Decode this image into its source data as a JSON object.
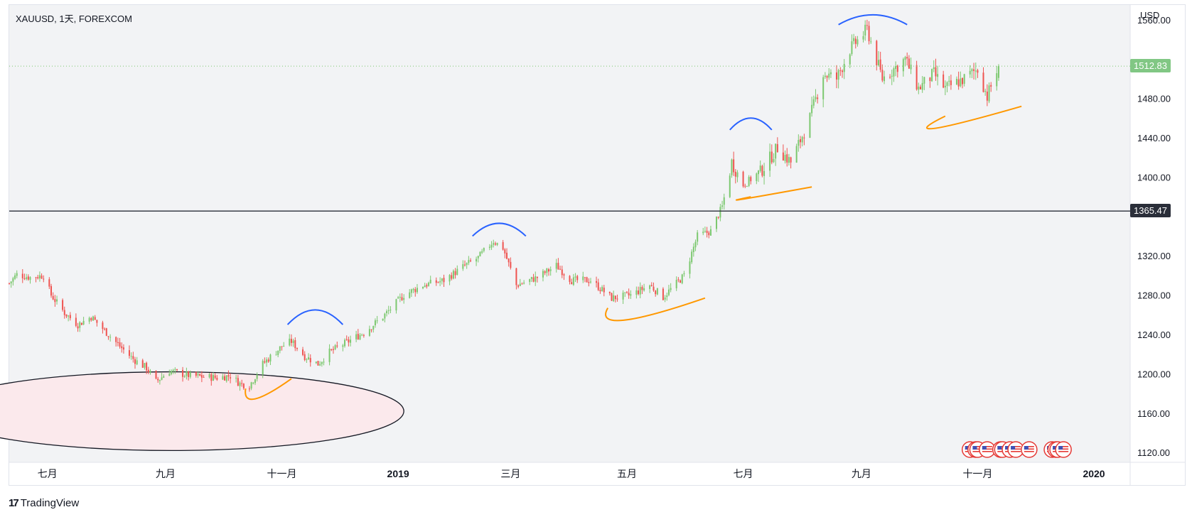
{
  "header": {
    "symbol_title": "XAUUSD, 1天, FOREXCOM",
    "currency": "USD"
  },
  "branding": {
    "logo_mark": "17",
    "logo_text": "TradingView"
  },
  "price_tags": {
    "last_price": "1512.83",
    "hline_price": "1365.47"
  },
  "colors": {
    "up": "#26a69a",
    "up_light": "#7cc86f",
    "down": "#ef5350",
    "blue_arc": "#2962ff",
    "orange_arc": "#ff9800",
    "ellipse_fill": "#fbe9ec",
    "hline": "#2a2e39",
    "last_price_tag": "#81c784",
    "plot_bg": "#f2f3f5"
  },
  "chart_data": {
    "type": "candlestick",
    "symbol": "XAUUSD",
    "interval": "1天",
    "exchange": "FOREXCOM",
    "ylim": [
      1110,
      1575
    ],
    "y_ticks": [
      1120,
      1160,
      1200,
      1240,
      1280,
      1320,
      1400,
      1440,
      1480,
      1560
    ],
    "y_tick_labels": [
      "1120.00",
      "1160.00",
      "1200.00",
      "1240.00",
      "1280.00",
      "1320.00",
      "1400.00",
      "1440.00",
      "1480.00",
      "1560.00"
    ],
    "x_tick_labels": [
      "七月",
      "九月",
      "十一月",
      "2019",
      "三月",
      "五月",
      "七月",
      "九月",
      "十一月",
      "2020"
    ],
    "x_tick_bold": [
      false,
      false,
      false,
      true,
      false,
      false,
      false,
      false,
      false,
      true
    ],
    "x_range": [
      "2018-06-11",
      "2020-01-20"
    ],
    "x_tick_dates": [
      "2018-07-01",
      "2018-09-01",
      "2018-11-01",
      "2019-01-01",
      "2019-03-01",
      "2019-05-01",
      "2019-07-01",
      "2019-09-01",
      "2019-11-01",
      "2020-01-01"
    ],
    "last_price": 1512.83,
    "horizontal_line": 1365.47,
    "price_path": [
      [
        "2018-06-11",
        1292
      ],
      [
        "2018-06-15",
        1301
      ],
      [
        "2018-06-22",
        1298
      ],
      [
        "2018-06-29",
        1300
      ],
      [
        "2018-07-03",
        1280
      ],
      [
        "2018-07-10",
        1262
      ],
      [
        "2018-07-17",
        1250
      ],
      [
        "2018-07-24",
        1258
      ],
      [
        "2018-08-01",
        1242
      ],
      [
        "2018-08-08",
        1228
      ],
      [
        "2018-08-15",
        1215
      ],
      [
        "2018-08-22",
        1206
      ],
      [
        "2018-08-27",
        1192
      ],
      [
        "2018-09-03",
        1203
      ],
      [
        "2018-09-14",
        1198
      ],
      [
        "2018-09-28",
        1196
      ],
      [
        "2018-10-05",
        1198
      ],
      [
        "2018-10-10",
        1190
      ],
      [
        "2018-10-15",
        1188
      ],
      [
        "2018-10-22",
        1210
      ],
      [
        "2018-11-01",
        1228
      ],
      [
        "2018-11-06",
        1233
      ],
      [
        "2018-11-13",
        1218
      ],
      [
        "2018-11-20",
        1210
      ],
      [
        "2018-11-26",
        1222
      ],
      [
        "2018-12-05",
        1232
      ],
      [
        "2018-12-14",
        1242
      ],
      [
        "2018-12-24",
        1258
      ],
      [
        "2019-01-04",
        1280
      ],
      [
        "2019-01-14",
        1290
      ],
      [
        "2019-01-25",
        1295
      ],
      [
        "2019-02-05",
        1310
      ],
      [
        "2019-02-12",
        1318
      ],
      [
        "2019-02-20",
        1335
      ],
      [
        "2019-02-25",
        1328
      ],
      [
        "2019-03-04",
        1290
      ],
      [
        "2019-03-15",
        1298
      ],
      [
        "2019-03-25",
        1310
      ],
      [
        "2019-04-02",
        1295
      ],
      [
        "2019-04-12",
        1295
      ],
      [
        "2019-04-23",
        1277
      ],
      [
        "2019-05-03",
        1280
      ],
      [
        "2019-05-13",
        1290
      ],
      [
        "2019-05-20",
        1278
      ],
      [
        "2019-05-31",
        1300
      ],
      [
        "2019-06-07",
        1340
      ],
      [
        "2019-06-14",
        1345
      ],
      [
        "2019-06-20",
        1370
      ],
      [
        "2019-06-25",
        1415
      ],
      [
        "2019-07-01",
        1392
      ],
      [
        "2019-07-10",
        1405
      ],
      [
        "2019-07-19",
        1430
      ],
      [
        "2019-07-26",
        1415
      ],
      [
        "2019-08-05",
        1460
      ],
      [
        "2019-08-12",
        1505
      ],
      [
        "2019-08-19",
        1500
      ],
      [
        "2019-08-26",
        1530
      ],
      [
        "2019-09-04",
        1550
      ],
      [
        "2019-09-12",
        1500
      ],
      [
        "2019-09-24",
        1520
      ],
      [
        "2019-10-01",
        1490
      ],
      [
        "2019-10-09",
        1505
      ],
      [
        "2019-10-15",
        1490
      ],
      [
        "2019-10-25",
        1500
      ],
      [
        "2019-11-01",
        1510
      ],
      [
        "2019-11-06",
        1482
      ],
      [
        "2019-11-12",
        1512.83
      ]
    ],
    "shapes": {
      "ellipse": {
        "x_center": "2018-09-04",
        "y_center": 1162,
        "x_radius_days": 122,
        "y_radius": 40,
        "label": ""
      },
      "blue_arcs": [
        {
          "x_start": "2018-11-04",
          "x_end": "2018-12-03",
          "y_base": 1250,
          "y_peak": 1265
        },
        {
          "x_start": "2019-02-09",
          "x_end": "2019-03-09",
          "y_base": 1340,
          "y_peak": 1353
        },
        {
          "x_start": "2019-06-24",
          "x_end": "2019-07-16",
          "y_base": 1448,
          "y_peak": 1460
        },
        {
          "x_start": "2019-08-20",
          "x_end": "2019-09-25",
          "y_base": 1555,
          "y_peak": 1565
        }
      ],
      "orange_arcs": [
        {
          "x_start": "2018-10-13",
          "x_end": "2018-11-06",
          "y_base": 1185,
          "y_trough": 1172
        },
        {
          "x_start": "2019-04-21",
          "x_end": "2019-06-11",
          "y_base": 1267,
          "y_trough": 1252
        },
        {
          "x_start": "2019-07-05",
          "x_end": "2019-08-06",
          "y_base": 1380,
          "y_trough": 1375
        },
        {
          "x_start": "2019-10-15",
          "x_end": "2019-11-24",
          "y_base": 1462,
          "y_trough": 1447
        }
      ]
    },
    "event_markers": {
      "icon": "us-flag-icon",
      "dates": [
        "2019-10-28",
        "2019-10-31",
        "2019-11-01",
        "2019-11-06",
        "2019-11-13",
        "2019-11-14",
        "2019-11-18",
        "2019-11-21",
        "2019-11-28",
        "2019-12-10",
        "2019-12-12",
        "2019-12-13",
        "2019-12-16"
      ]
    }
  }
}
